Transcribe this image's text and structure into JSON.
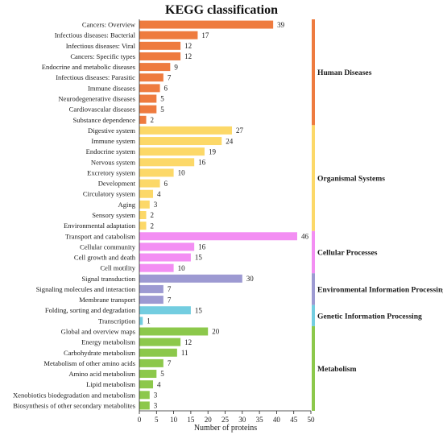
{
  "chart_data": {
    "type": "bar",
    "orientation": "horizontal",
    "title": "KEGG classification",
    "xlabel": "Number of proteins",
    "xlim": [
      0,
      50
    ],
    "xticks": [
      "0",
      "5",
      "10",
      "15",
      "20",
      "25",
      "30",
      "35",
      "40",
      "45",
      "50"
    ],
    "grid": false,
    "categories": [
      "Cancers: Overview",
      "Infectious diseases: Bacterial",
      "Infectious diseases: Viral",
      "Cancers: Specific types",
      "Endocrine and metabolic diseases",
      "Infectious diseases: Parasitic",
      "Immune diseases",
      "Neurodegenerative diseases",
      "Cardiovascular diseases",
      "Substance dependence",
      "Digestive system",
      "Immune system",
      "Endocrine system",
      "Nervous system",
      "Excretory system",
      "Development",
      "Circulatory system",
      "Aging",
      "Sensory system",
      "Environmental adaptation",
      "Transport and catabolism",
      "Cellular community",
      "Cell growth and death",
      "Cell motility",
      "Signal transduction",
      "Signaling molecules and interaction",
      "Membrane transport",
      "Folding, sorting and degradation",
      "Transcription",
      "Global and overview maps",
      "Energy metabolism",
      "Carbohydrate metabolism",
      "Metabolism of other amino acids",
      "Amino acid metabolism",
      "Lipid metabolism",
      "Xenobiotics biodegradation and metabolism",
      "Biosynthesis of other secondary metabolites"
    ],
    "values": [
      39,
      17,
      12,
      12,
      9,
      7,
      6,
      5,
      5,
      2,
      27,
      24,
      19,
      16,
      10,
      6,
      4,
      3,
      2,
      2,
      46,
      16,
      15,
      10,
      30,
      7,
      7,
      15,
      1,
      20,
      12,
      11,
      7,
      5,
      4,
      3,
      3
    ],
    "value_labels": [
      "39",
      "17",
      "12",
      "12",
      "9",
      "7",
      "6",
      "5",
      "5",
      "2",
      "27",
      "24",
      "19",
      "16",
      "10",
      "6",
      "4",
      "3",
      "2",
      "2",
      "46",
      "16",
      "15",
      "10",
      "30",
      "7",
      "7",
      "15",
      "1",
      "20",
      "12",
      "11",
      "7",
      "5",
      "4",
      "3",
      "3"
    ],
    "groups": [
      {
        "label": "Human Diseases",
        "start": 0,
        "count": 10,
        "color": "#ee7b3f"
      },
      {
        "label": "Organismal Systems",
        "start": 10,
        "count": 10,
        "color": "#fcd868"
      },
      {
        "label": "Cellular Processes",
        "start": 20,
        "count": 4,
        "color": "#f38ef3"
      },
      {
        "label": "Environmental Information Processing",
        "start": 24,
        "count": 3,
        "color": "#9d9ad2"
      },
      {
        "label": "Genetic Information Processing",
        "start": 27,
        "count": 2,
        "color": "#73cde0"
      },
      {
        "label": "Metabolism",
        "start": 29,
        "count": 8,
        "color": "#8cc84b"
      }
    ]
  }
}
